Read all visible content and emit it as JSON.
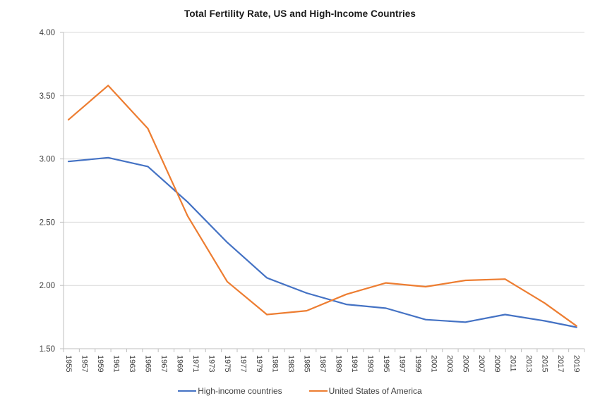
{
  "chart_data": {
    "type": "line",
    "title": "Total Fertility Rate, US and High-Income Countries",
    "xlabel": "",
    "ylabel": "",
    "x": [
      1955,
      1960,
      1965,
      1970,
      1975,
      1980,
      1985,
      1990,
      1995,
      2000,
      2005,
      2010,
      2015,
      2019
    ],
    "series": [
      {
        "name": "High-income countries",
        "color": "#4472C4",
        "values": [
          2.98,
          3.01,
          2.94,
          2.66,
          2.34,
          2.06,
          1.94,
          1.85,
          1.82,
          1.73,
          1.71,
          1.77,
          1.72,
          1.67
        ]
      },
      {
        "name": "United States of America",
        "color": "#ED7D31",
        "values": [
          3.31,
          3.58,
          3.24,
          2.55,
          2.03,
          1.77,
          1.8,
          1.93,
          2.02,
          1.99,
          2.04,
          2.05,
          1.86,
          1.68
        ]
      }
    ],
    "ylim": [
      1.5,
      4.0
    ],
    "y_ticks": [
      1.5,
      2.0,
      2.5,
      3.0,
      3.5,
      4.0
    ],
    "y_tick_labels": [
      "1.50",
      "2.00",
      "2.50",
      "3.00",
      "3.50",
      "4.00"
    ],
    "x_tick_labels": [
      "1955",
      "1957",
      "1959",
      "1961",
      "1963",
      "1965",
      "1967",
      "1969",
      "1971",
      "1973",
      "1975",
      "1977",
      "1979",
      "1981",
      "1983",
      "1985",
      "1987",
      "1989",
      "1991",
      "1993",
      "1995",
      "1997",
      "1999",
      "2001",
      "2003",
      "2005",
      "2007",
      "2009",
      "2011",
      "2013",
      "2015",
      "2017",
      "2019"
    ],
    "grid": "horizontal",
    "legend_position": "bottom",
    "colors": {
      "gridline": "#D9D9D9",
      "axis_line": "#BFBFBF",
      "tick_text": "#404040",
      "title_text": "#1A1A1A",
      "background": "#FFFFFF"
    }
  }
}
